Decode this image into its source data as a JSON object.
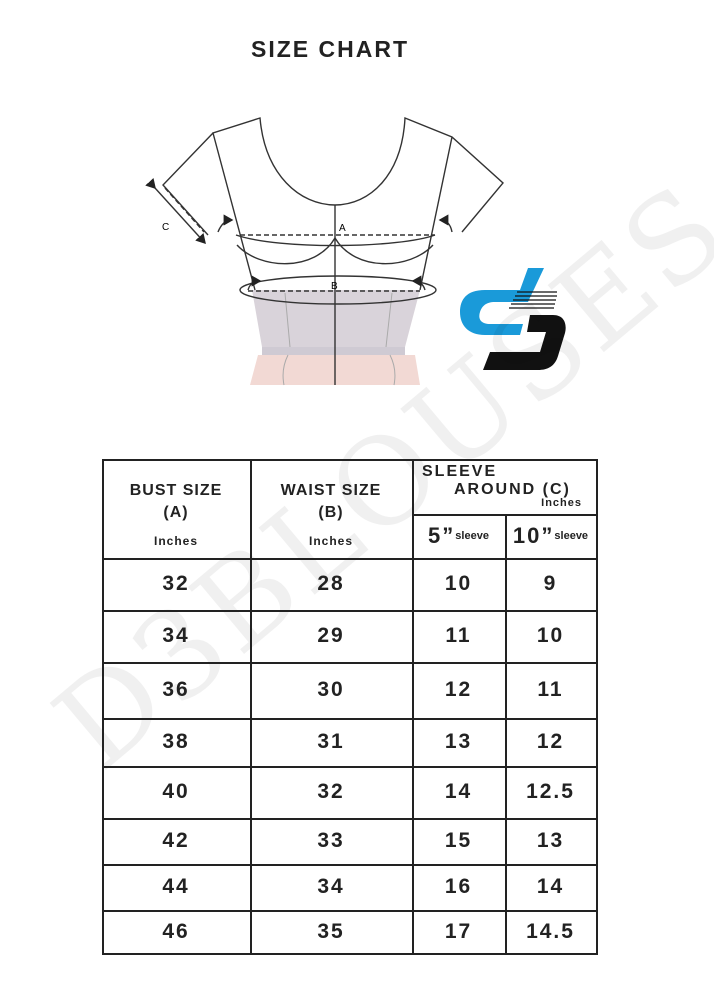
{
  "title": "SIZE CHART",
  "diagram": {
    "labels": {
      "a": "A",
      "b": "B",
      "c": "C"
    }
  },
  "logo": {
    "colors": {
      "blue": "#1a9ad9",
      "black": "#111111"
    }
  },
  "watermark": "D3BLOUSES",
  "table": {
    "headers": {
      "bust": {
        "label": "BUST SIZE",
        "code": "(A)",
        "unit": "Inches"
      },
      "waist": {
        "label": "WAIST SIZE",
        "code": "(B)",
        "unit": "Inches"
      },
      "sleeve": {
        "line1": "SLEEVE",
        "line2": "AROUND",
        "code": "(C)",
        "unit": "Inches",
        "sub": [
          {
            "size": "5”",
            "label": "sleeve"
          },
          {
            "size": "10”",
            "label": "sleeve"
          }
        ]
      }
    },
    "rows": [
      [
        "32",
        "28",
        "10",
        "9"
      ],
      [
        "34",
        "29",
        "11",
        "10"
      ],
      [
        "36",
        "30",
        "12",
        "11"
      ],
      [
        "38",
        "31",
        "13",
        "12"
      ],
      [
        "40",
        "32",
        "14",
        "12.5"
      ],
      [
        "42",
        "33",
        "15",
        "13"
      ],
      [
        "44",
        "34",
        "16",
        "14"
      ],
      [
        "46",
        "35",
        "17",
        "14.5"
      ]
    ]
  }
}
